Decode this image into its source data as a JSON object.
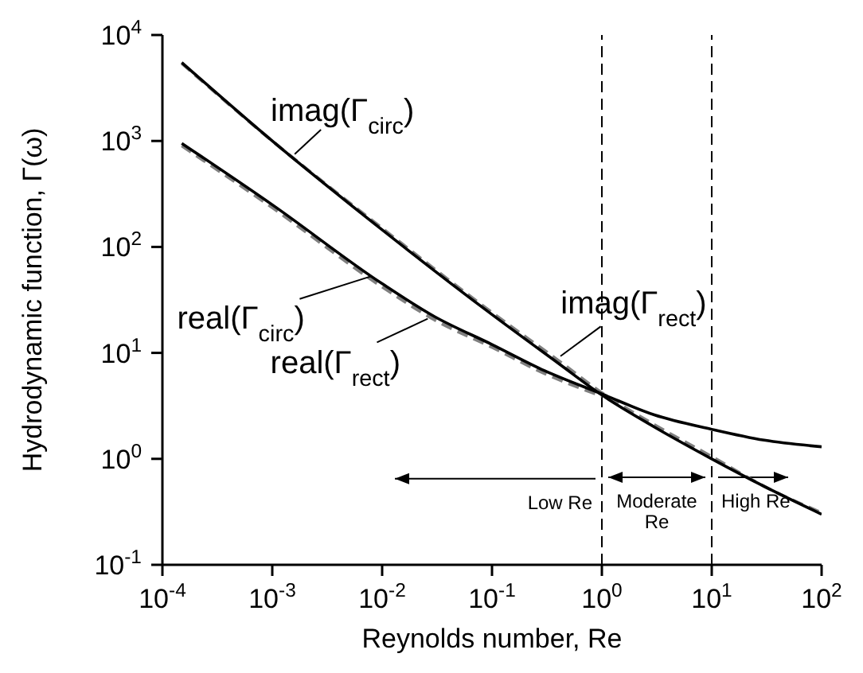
{
  "chart_data": {
    "type": "line",
    "xlabel": "Reynolds number, Re",
    "ylabel": "Hydrodynamic function, Γ(ω)",
    "log": "xy",
    "xlim": [
      0.0001,
      100
    ],
    "ylim": [
      0.1,
      10000
    ],
    "xticks": [
      {
        "value": 0.0001,
        "label": "10$^{-4}$"
      },
      {
        "value": 0.001,
        "label": "10$^{-3}$"
      },
      {
        "value": 0.01,
        "label": "10$^{-2}$"
      },
      {
        "value": 0.1,
        "label": "10$^{-1}$"
      },
      {
        "value": 1,
        "label": "10$^{0}$"
      },
      {
        "value": 10,
        "label": "10$^{1}$"
      },
      {
        "value": 100,
        "label": "10$^{2}$"
      }
    ],
    "yticks": [
      {
        "value": 0.1,
        "label": "10$^{-1}$"
      },
      {
        "value": 1,
        "label": "10$^{0}$"
      },
      {
        "value": 10,
        "label": "10$^{1}$"
      },
      {
        "value": 100,
        "label": "10$^{2}$"
      },
      {
        "value": 1000,
        "label": "10$^{3}$"
      },
      {
        "value": 10000,
        "label": "10$^{4}$"
      }
    ],
    "series": [
      {
        "color": "#808080",
        "line_style": "dashed",
        "x": [
          0.00015,
          0.001,
          0.01,
          0.1,
          0.4,
          1,
          3,
          10,
          30,
          100
        ],
        "values": [
          5400,
          1000,
          150,
          24,
          8.5,
          4.2,
          2.1,
          1.05,
          0.55,
          0.31
        ]
      },
      {
        "color": "#808080",
        "line_style": "dashed",
        "x": [
          0.00015,
          0.001,
          0.01,
          0.03,
          0.1,
          0.3,
          1
        ],
        "values": [
          900,
          235,
          42,
          20.5,
          11.3,
          6.4,
          3.9
        ]
      },
      {
        "color": "#000000",
        "line_style": "solid",
        "x": [
          0.00015,
          0.001,
          0.01,
          0.1,
          0.4,
          1,
          3,
          10,
          30,
          100
        ],
        "values": [
          5500,
          1000,
          145,
          23,
          8,
          4,
          2,
          1.0,
          0.55,
          0.3
        ]
      },
      {
        "color": "#000000",
        "line_style": "solid",
        "x": [
          0.00015,
          0.001,
          0.01,
          0.03,
          0.1,
          0.3,
          1,
          3,
          10,
          30,
          100
        ],
        "values": [
          950,
          250,
          45,
          22,
          12,
          6.8,
          4.1,
          2.6,
          1.9,
          1.5,
          1.3
        ]
      }
    ],
    "ref_lines": [
      {
        "axis": "x",
        "value": 1,
        "line_style": "dashed",
        "color": "#000000"
      },
      {
        "axis": "x",
        "value": 10,
        "line_style": "dashed",
        "color": "#000000"
      }
    ],
    "annotations": [
      {
        "text": "imag(Γ$_{circ}$)",
        "x": 0.0016,
        "y": 750
      },
      {
        "text": "real(Γ$_{circ}$)",
        "x": 0.008,
        "y": 53
      },
      {
        "text": "real(Γ$_{rect}$)",
        "x": 0.026,
        "y": 21
      },
      {
        "text": "imag(Γ$_{rect}$)",
        "x": 0.42,
        "y": 9.3
      },
      {
        "text": "Low Re",
        "x": 1,
        "y": 0.65
      },
      "Moderate Re",
      "High Re"
    ]
  }
}
